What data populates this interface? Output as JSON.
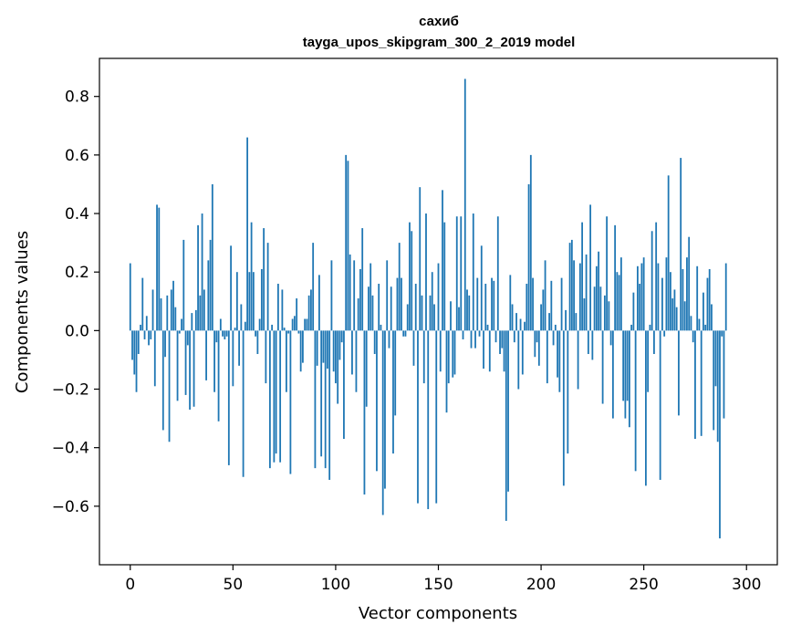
{
  "chart_data": {
    "type": "bar",
    "title": "сахиб",
    "subtitle": "tayga_upos_skipgram_300_2_2019 model",
    "xlabel": "Vector components",
    "ylabel": "Components values",
    "xlim": [
      -15,
      315
    ],
    "ylim": [
      -0.8,
      0.93
    ],
    "xticks": [
      0,
      50,
      100,
      150,
      200,
      250,
      300
    ],
    "xtick_labels": [
      "0",
      "50",
      "100",
      "150",
      "200",
      "250",
      "300"
    ],
    "yticks": [
      -0.6,
      -0.4,
      -0.2,
      0.0,
      0.2,
      0.4,
      0.6,
      0.8
    ],
    "ytick_labels": [
      "−0.6",
      "−0.4",
      "−0.2",
      "0.0",
      "0.2",
      "0.4",
      "0.6",
      "0.8"
    ],
    "bar_color": "#1f77b4",
    "grid": false,
    "values": [
      0.23,
      -0.1,
      -0.15,
      -0.21,
      -0.08,
      0.02,
      0.18,
      -0.03,
      0.05,
      -0.05,
      -0.03,
      0.14,
      -0.19,
      0.43,
      0.42,
      0.11,
      -0.34,
      -0.09,
      0.12,
      -0.38,
      0.14,
      0.17,
      0.08,
      -0.24,
      -0.01,
      0.04,
      0.31,
      -0.22,
      -0.05,
      -0.27,
      0.06,
      -0.26,
      0.07,
      0.36,
      0.12,
      0.4,
      0.14,
      -0.17,
      0.24,
      0.31,
      0.5,
      -0.21,
      -0.04,
      -0.31,
      0.04,
      -0.02,
      -0.03,
      -0.02,
      -0.46,
      0.29,
      -0.19,
      0.01,
      0.2,
      -0.12,
      0.09,
      -0.5,
      0.03,
      0.66,
      0.2,
      0.37,
      0.2,
      -0.02,
      -0.08,
      0.04,
      0.21,
      0.35,
      -0.18,
      0.3,
      -0.47,
      0.02,
      -0.45,
      -0.42,
      0.16,
      -0.45,
      0.14,
      0.01,
      -0.21,
      -0.01,
      -0.49,
      0.04,
      0.05,
      0.11,
      -0.01,
      -0.14,
      -0.11,
      0.04,
      0.04,
      0.12,
      0.14,
      0.3,
      -0.47,
      -0.12,
      0.19,
      -0.43,
      -0.11,
      -0.47,
      -0.13,
      -0.51,
      0.24,
      -0.14,
      -0.18,
      -0.25,
      -0.1,
      -0.04,
      -0.37,
      0.6,
      0.58,
      0.26,
      -0.15,
      0.24,
      -0.21,
      0.11,
      0.21,
      0.35,
      -0.56,
      -0.26,
      0.15,
      0.23,
      0.12,
      -0.08,
      -0.48,
      0.16,
      0.02,
      -0.63,
      -0.54,
      0.24,
      -0.06,
      0.15,
      -0.42,
      -0.29,
      0.18,
      0.3,
      0.18,
      -0.02,
      -0.02,
      0.09,
      0.37,
      0.34,
      -0.12,
      0.16,
      -0.59,
      0.49,
      0.12,
      -0.18,
      0.4,
      -0.61,
      0.12,
      0.2,
      0.09,
      -0.59,
      0.23,
      -0.14,
      0.48,
      0.37,
      -0.28,
      -0.18,
      0.1,
      -0.16,
      -0.15,
      0.39,
      0.08,
      0.39,
      -0.03,
      0.86,
      0.14,
      0.12,
      -0.06,
      0.4,
      -0.06,
      0.18,
      -0.02,
      0.29,
      -0.13,
      0.16,
      0.02,
      -0.14,
      0.18,
      0.17,
      -0.04,
      0.39,
      -0.08,
      -0.06,
      -0.14,
      -0.65,
      -0.55,
      0.19,
      0.09,
      -0.04,
      0.06,
      -0.2,
      0.04,
      -0.15,
      0.03,
      0.16,
      0.5,
      0.6,
      0.18,
      -0.09,
      -0.04,
      -0.12,
      0.09,
      0.14,
      0.24,
      -0.18,
      0.06,
      0.17,
      -0.05,
      0.02,
      -0.16,
      -0.21,
      0.18,
      -0.53,
      0.07,
      -0.42,
      0.3,
      0.31,
      0.24,
      0.06,
      -0.2,
      0.23,
      0.37,
      0.11,
      0.26,
      -0.08,
      0.43,
      -0.1,
      0.15,
      0.22,
      0.27,
      0.15,
      -0.25,
      0.12,
      0.39,
      0.1,
      -0.05,
      -0.3,
      0.36,
      0.2,
      0.19,
      0.25,
      -0.24,
      -0.3,
      -0.24,
      -0.33,
      0.02,
      0.13,
      -0.48,
      0.22,
      0.16,
      0.23,
      0.25,
      -0.53,
      -0.21,
      0.02,
      0.34,
      -0.08,
      0.37,
      0.23,
      -0.51,
      0.18,
      -0.02,
      0.25,
      0.53,
      0.2,
      0.11,
      0.14,
      0.08,
      -0.29,
      0.59,
      0.21,
      0.1,
      0.25,
      0.32,
      0.05,
      -0.04,
      -0.37,
      0.22,
      0.04,
      -0.36,
      0.13,
      0.02,
      0.18,
      0.21,
      0.09,
      -0.34,
      -0.19,
      -0.38,
      -0.71,
      -0.02,
      -0.3,
      0.23
    ]
  }
}
